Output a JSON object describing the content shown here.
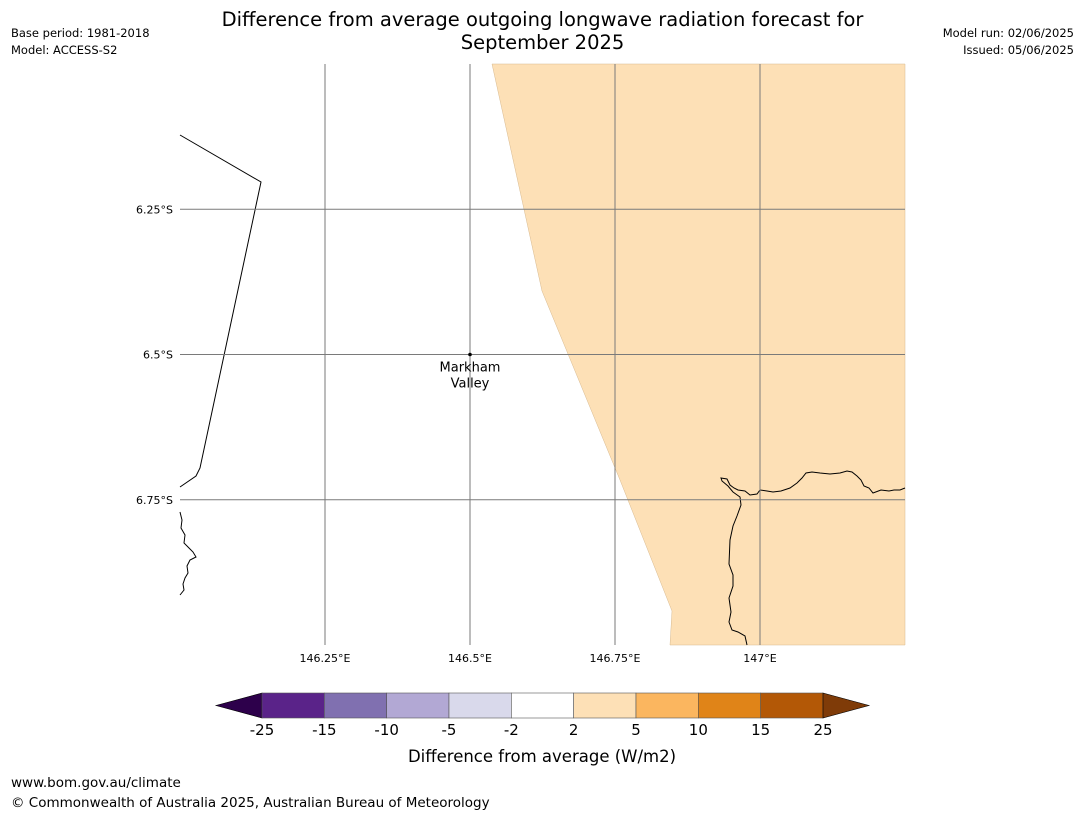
{
  "title_line1": "Difference from average outgoing longwave radiation forecast for",
  "title_line2": "September 2025",
  "meta_left": {
    "base_period": "Base period: 1981-2018",
    "model": "Model: ACCESS-S2"
  },
  "meta_right": {
    "model_run": "Model run: 02/06/2025",
    "issued": "Issued: 05/06/2025"
  },
  "map": {
    "lon_range": [
      146.0,
      147.25
    ],
    "lat_range": [
      -7.0,
      -6.0
    ],
    "lon_ticks": [
      {
        "value": 146.25,
        "label": "146.25°E"
      },
      {
        "value": 146.5,
        "label": "146.5°E"
      },
      {
        "value": 146.75,
        "label": "146.75°E"
      },
      {
        "value": 147.0,
        "label": "147°E"
      }
    ],
    "lat_ticks": [
      {
        "value": -6.25,
        "label": "6.25°S"
      },
      {
        "value": -6.5,
        "label": "6.5°S"
      },
      {
        "value": -6.75,
        "label": "6.75°S"
      }
    ],
    "place": {
      "line1": "Markham",
      "line2": "Valley",
      "lon": 146.5,
      "lat": -6.5
    },
    "anomaly_fill_color": "#fde0b6",
    "anomaly_category": "2 to 5"
  },
  "colorbar": {
    "ticks": [
      "-25",
      "-15",
      "-10",
      "-5",
      "-2",
      "2",
      "5",
      "10",
      "15",
      "25"
    ],
    "colors": [
      "#5a2389",
      "#8070b0",
      "#b2a8d4",
      "#d9d9eb",
      "#ffffff",
      "#fde0b6",
      "#fbb65f",
      "#e08418",
      "#b35806"
    ],
    "extend_low_color": "#2d004b",
    "extend_high_color": "#7f3b08",
    "label": "Difference from average (W/m2)"
  },
  "footer": {
    "url": "www.bom.gov.au/climate",
    "copyright": "© Commonwealth of Australia 2025, Australian Bureau of Meteorology"
  }
}
